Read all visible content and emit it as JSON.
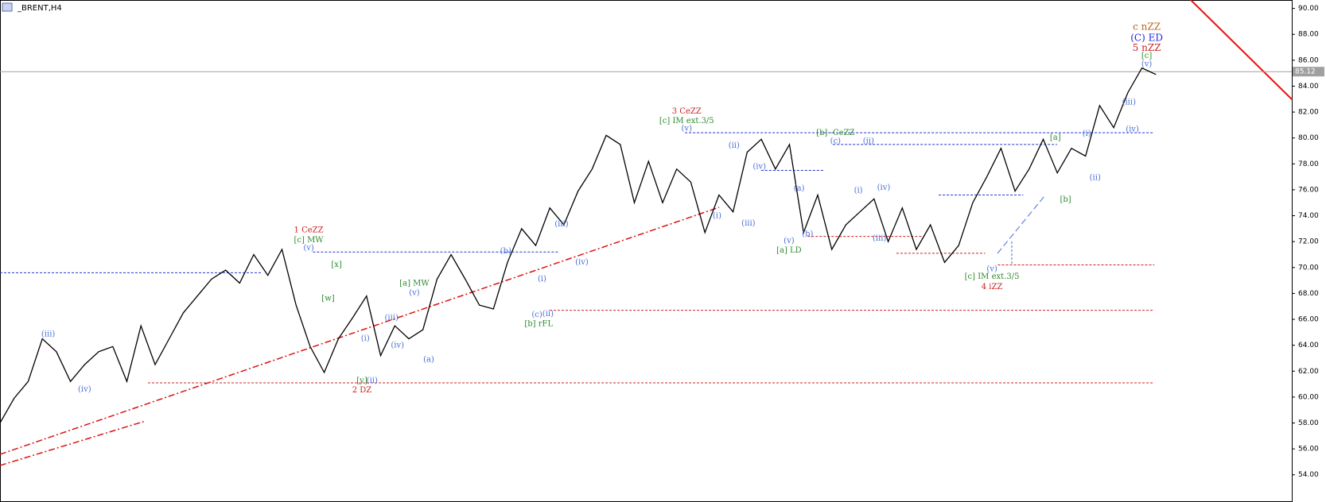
{
  "chart_data": {
    "type": "line",
    "title": "_BRENT,H4",
    "color": "#000000",
    "values": [
      58.0,
      59.9,
      61.2,
      64.5,
      63.5,
      61.2,
      62.5,
      63.5,
      63.9,
      61.2,
      65.5,
      62.5,
      64.5,
      66.5,
      67.8,
      69.1,
      69.8,
      68.8,
      71.0,
      69.4,
      71.4,
      67.1,
      63.9,
      61.9,
      64.5,
      66.1,
      67.8,
      63.2,
      65.5,
      64.5,
      65.2,
      69.1,
      71.0,
      69.1,
      67.1,
      66.8,
      70.4,
      73.0,
      71.7,
      74.6,
      73.3,
      75.9,
      77.6,
      80.2,
      79.5,
      75.0,
      78.2,
      75.0,
      77.6,
      76.6,
      72.7,
      75.6,
      74.3,
      78.9,
      79.9,
      77.6,
      79.5,
      72.7,
      75.6,
      71.4,
      73.3,
      74.3,
      75.3,
      72.0,
      74.6,
      71.4,
      73.3,
      70.4,
      71.7,
      75.0,
      77.0,
      79.2,
      75.9,
      77.6,
      79.9,
      77.3,
      79.2,
      78.6,
      82.5,
      80.8,
      83.5,
      85.4,
      84.9
    ],
    "ylim": [
      51.9,
      90.65
    ],
    "yticks": [
      {
        "value": 54,
        "label": "54.00"
      },
      {
        "value": 56,
        "label": "56.00"
      },
      {
        "value": 58,
        "label": "58.00"
      },
      {
        "value": 60,
        "label": "60.00"
      },
      {
        "value": 62,
        "label": "62.00"
      },
      {
        "value": 64,
        "label": "64.00"
      },
      {
        "value": 66,
        "label": "66.00"
      },
      {
        "value": 68,
        "label": "68.00"
      },
      {
        "value": 70,
        "label": "70.00"
      },
      {
        "value": 72,
        "label": "72.00"
      },
      {
        "value": 74,
        "label": "74.00"
      },
      {
        "value": 76,
        "label": "76.00"
      },
      {
        "value": 78,
        "label": "78.00"
      },
      {
        "value": 80,
        "label": "80.00"
      },
      {
        "value": 82,
        "label": "82.00"
      },
      {
        "value": 84,
        "label": "84.00"
      },
      {
        "value": 86,
        "label": "86.00"
      },
      {
        "value": 88,
        "label": "88.00"
      },
      {
        "value": 90,
        "label": "90.00"
      }
    ],
    "current_price": 85.12,
    "levels": [
      {
        "value": 69.6,
        "color": "#2233cc"
      },
      {
        "value": 71.2,
        "color": "#2233cc"
      },
      {
        "value": 80.4,
        "color": "#2233cc"
      },
      {
        "value": 79.5,
        "color": "#2233cc"
      },
      {
        "value": 77.5,
        "color": "#2233cc"
      },
      {
        "value": 75.6,
        "color": "#2233cc"
      },
      {
        "value": 72.4,
        "color": "#cc2222"
      },
      {
        "value": 71.1,
        "color": "#cc2222"
      },
      {
        "value": 70.2,
        "color": "#cc2222"
      },
      {
        "value": 66.7,
        "color": "#cc2222"
      },
      {
        "value": 61.1,
        "color": "#cc2222"
      }
    ],
    "annotations": [
      {
        "text": "(iii)",
        "color": "#4a6fd8"
      },
      {
        "text": "(iv)",
        "color": "#4a6fd8"
      },
      {
        "text": "(v)",
        "color": "#4a6fd8"
      },
      {
        "text": "1 CeZZ",
        "color": "#cc2222"
      },
      {
        "text": "[c] MW",
        "color": "#2e8b2e"
      },
      {
        "text": "[x]",
        "color": "#2e8b2e"
      },
      {
        "text": "[w]",
        "color": "#2e8b2e"
      },
      {
        "text": "(i)",
        "color": "#4a6fd8"
      },
      {
        "text": "[y]",
        "color": "#2e8b2e"
      },
      {
        "text": "(ii)",
        "color": "#4a6fd8"
      },
      {
        "text": "2 DZ",
        "color": "#cc2222"
      },
      {
        "text": "(iii)",
        "color": "#4a6fd8"
      },
      {
        "text": "(iv)",
        "color": "#4a6fd8"
      },
      {
        "text": "(v)",
        "color": "#4a6fd8"
      },
      {
        "text": "[a] MW",
        "color": "#2e8b2e"
      },
      {
        "text": "(a)",
        "color": "#4a6fd8"
      },
      {
        "text": "(b)",
        "color": "#4a6fd8"
      },
      {
        "text": "(i)",
        "color": "#4a6fd8"
      },
      {
        "text": "(c)",
        "color": "#4a6fd8"
      },
      {
        "text": "(ii)",
        "color": "#4a6fd8"
      },
      {
        "text": "[b] rFL",
        "color": "#2e8b2e"
      },
      {
        "text": "(iii)",
        "color": "#4a6fd8"
      },
      {
        "text": "(iv)",
        "color": "#4a6fd8"
      },
      {
        "text": "(v)",
        "color": "#4a6fd8"
      },
      {
        "text": "3 CeZZ",
        "color": "#cc2222"
      },
      {
        "text": "[c] IM ext.3/5",
        "color": "#2e8b2e"
      },
      {
        "text": "(i)",
        "color": "#4a6fd8"
      },
      {
        "text": "(ii)",
        "color": "#4a6fd8"
      },
      {
        "text": "(iii)",
        "color": "#4a6fd8"
      },
      {
        "text": "(iv)",
        "color": "#4a6fd8"
      },
      {
        "text": "(v)",
        "color": "#4a6fd8"
      },
      {
        "text": "[a] LD",
        "color": "#2e8b2e"
      },
      {
        "text": "(a)",
        "color": "#4a6fd8"
      },
      {
        "text": "(b)",
        "color": "#4a6fd8"
      },
      {
        "text": "[b] -CeZZ",
        "color": "#2e8b2e"
      },
      {
        "text": "(c)",
        "color": "#4a6fd8"
      },
      {
        "text": "(ii)",
        "color": "#4a6fd8"
      },
      {
        "text": "(i)",
        "color": "#4a6fd8"
      },
      {
        "text": "(iv)",
        "color": "#4a6fd8"
      },
      {
        "text": "(iii)",
        "color": "#4a6fd8"
      },
      {
        "text": "(v)",
        "color": "#4a6fd8"
      },
      {
        "text": "[c] IM ext.3/5",
        "color": "#2e8b2e"
      },
      {
        "text": "4 iZZ",
        "color": "#cc2222"
      },
      {
        "text": "[a]",
        "color": "#2e8b2e"
      },
      {
        "text": "[b]",
        "color": "#2e8b2e"
      },
      {
        "text": "(i)",
        "color": "#4a6fd8"
      },
      {
        "text": "(ii)",
        "color": "#4a6fd8"
      },
      {
        "text": "(iii)",
        "color": "#4a6fd8"
      },
      {
        "text": "(iv)",
        "color": "#4a6fd8"
      },
      {
        "text": "(v)",
        "color": "#4a6fd8"
      },
      {
        "text": "[c]",
        "color": "#2e8b2e"
      },
      {
        "text": "5 nZZ",
        "color": "#cc2222"
      },
      {
        "text": "(C) ED",
        "color": "#2222dd"
      },
      {
        "text": "c nZZ",
        "color": "#b5651d"
      }
    ]
  }
}
